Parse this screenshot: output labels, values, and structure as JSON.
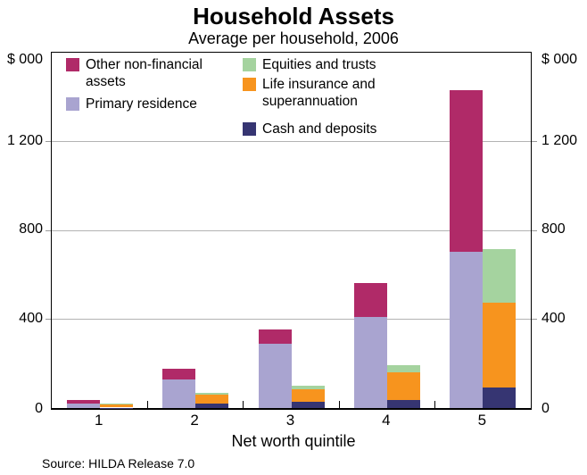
{
  "title": "Household Assets",
  "subtitle": "Average per household, 2006",
  "source": "Source: HILDA Release 7.0",
  "colors": {
    "other_nonfinancial": "#B02A68",
    "primary_residence": "#A9A4D0",
    "equities_trusts": "#A5D39F",
    "life_insurance_superannuation": "#F7941E",
    "cash_deposits": "#363572",
    "gridline": "#b3b3b3",
    "axis": "#000000"
  },
  "chart_data": {
    "type": "bar",
    "variant": "grouped-stacked",
    "title": "Household Assets",
    "subtitle": "Average per household, 2006",
    "xlabel": "Net worth quintile",
    "unit_label": "$ 000",
    "categories": [
      "1",
      "2",
      "3",
      "4",
      "5"
    ],
    "ylim": [
      0,
      1600
    ],
    "yticks": [
      0,
      400,
      800,
      1200
    ],
    "ytick_labels": [
      "0",
      "400",
      "800",
      "1 200"
    ],
    "grid": true,
    "legend_position": "top-inside",
    "groups": [
      {
        "name": "non-financial-assets",
        "stack_bottom_to_top": [
          "primary_residence",
          "other_nonfinancial"
        ]
      },
      {
        "name": "financial-assets",
        "stack_bottom_to_top": [
          "cash_deposits",
          "life_insurance_superannuation",
          "equities_trusts"
        ]
      }
    ],
    "series": [
      {
        "id": "other_nonfinancial",
        "name": "Other non-financial assets",
        "color": "#B02A68",
        "values": [
          17,
          47,
          64,
          152,
          726
        ]
      },
      {
        "id": "primary_residence",
        "name": "Primary residence",
        "color": "#A9A4D0",
        "values": [
          20,
          128,
          289,
          411,
          705
        ]
      },
      {
        "id": "equities_trusts",
        "name": "Equities and trusts",
        "color": "#A5D39F",
        "values": [
          1,
          6,
          14,
          30,
          239
        ]
      },
      {
        "id": "life_insurance_superannuation",
        "name": "Life insurance and superannuation",
        "color": "#F7941E",
        "values": [
          18,
          42,
          58,
          124,
          383
        ]
      },
      {
        "id": "cash_deposits",
        "name": "Cash and deposits",
        "color": "#363572",
        "values": [
          2,
          20,
          27,
          37,
          93
        ]
      }
    ]
  }
}
